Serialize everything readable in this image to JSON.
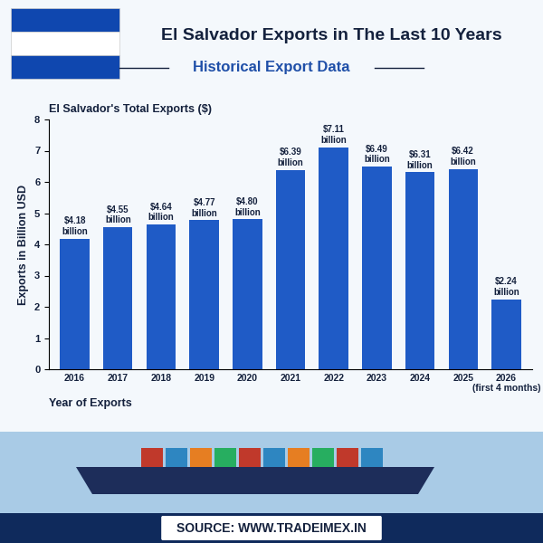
{
  "chart_data": {
    "type": "bar",
    "title": "El Salvador Exports in The Last 10 Years",
    "subtitle": "Historical Export Data",
    "axes_title": "El Salvador's Total Exports ($)",
    "y_label": "Exports in Billion USD",
    "x_label": "Year of Exports",
    "source": "SOURCE: WWW.TRADEIMEX.IN",
    "categories": [
      "2016",
      "2017",
      "2018",
      "2019",
      "2020",
      "2021",
      "2022",
      "2023",
      "2024",
      "2025",
      "2026\n(first 4 months)"
    ],
    "values": [
      4.18,
      4.55,
      4.64,
      4.77,
      4.8,
      6.39,
      7.11,
      6.49,
      6.31,
      6.42,
      2.24
    ],
    "value_labels": [
      "$4.18\nbillion",
      "$4.55\nbillion",
      "$4.64\nbillion",
      "$4.77\nbillion",
      "$4.80\nbillion",
      "$6.39\nbillion",
      "$7.11\nbillion",
      "$6.49\nbillion",
      "$6.31\nbillion",
      "$6.42\nbillion",
      "$2.24\nbillion"
    ],
    "color": "#1f5bc6",
    "ylim": [
      0,
      8
    ],
    "yticks": [
      0,
      1,
      2,
      3,
      4,
      5,
      6,
      7,
      8
    ],
    "grid": false,
    "data_labels": true
  }
}
